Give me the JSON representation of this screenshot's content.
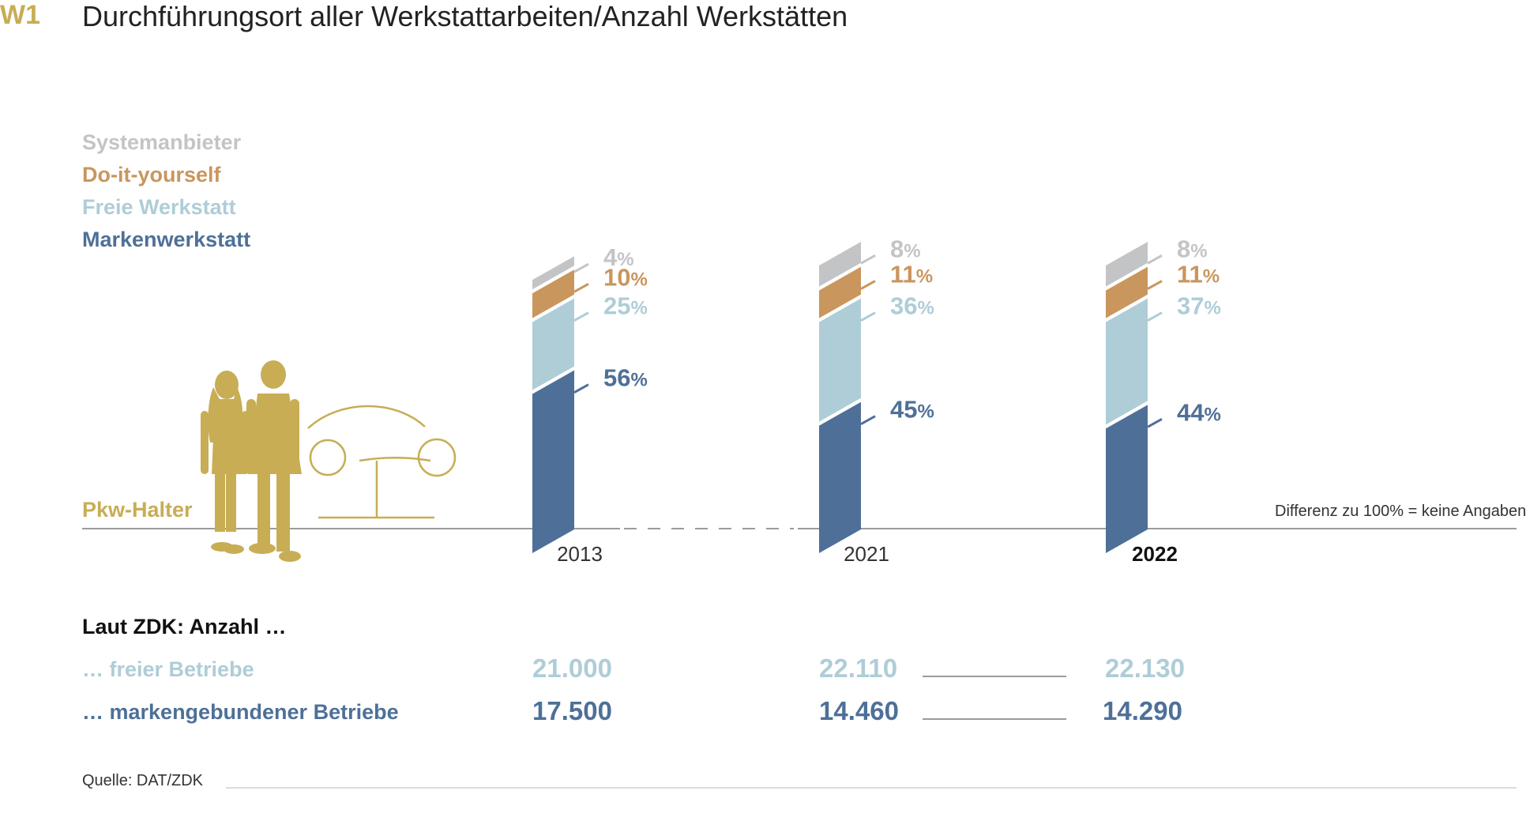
{
  "header": {
    "code": "W1",
    "title": "Durchführungsort aller Werkstattarbeiten/Anzahl Werkstätten"
  },
  "legend": [
    {
      "label": "Systemanbieter",
      "color": "#c3c4c6"
    },
    {
      "label": "Do-it-yourself",
      "color": "#c9965d"
    },
    {
      "label": "Freie Werkstatt",
      "color": "#aecdd7"
    },
    {
      "label": "Markenwerkstatt",
      "color": "#4e7098"
    }
  ],
  "owner_label": "Pkw-Halter",
  "owner_icon": "car-owners-illustration",
  "accent_color": "#c8ad55",
  "note": "Differenz zu 100% = keine Angaben",
  "chart_data": {
    "type": "bar",
    "stacked": true,
    "unit": "%",
    "categories": [
      "2013",
      "2021",
      "2022"
    ],
    "highlight_category": "2022",
    "series": [
      {
        "name": "Markenwerkstatt",
        "values": [
          56,
          45,
          44
        ],
        "color": "#4e7098"
      },
      {
        "name": "Freie Werkstatt",
        "values": [
          25,
          36,
          37
        ],
        "color": "#aecdd7"
      },
      {
        "name": "Do-it-yourself",
        "values": [
          10,
          11,
          11
        ],
        "color": "#c9965d"
      },
      {
        "name": "Systemanbieter",
        "values": [
          4,
          8,
          8
        ],
        "color": "#c3c4c6"
      }
    ],
    "ylim": [
      0,
      100
    ]
  },
  "counts": {
    "heading": "Laut ZDK: Anzahl …",
    "rows": [
      {
        "label": "… freier Betriebe",
        "values": [
          "21.000",
          "22.110",
          "22.130"
        ],
        "color": "#aecdd7"
      },
      {
        "label": "… markengebundener Betriebe",
        "values": [
          "17.500",
          "14.460",
          "14.290"
        ],
        "color": "#4e7098"
      }
    ]
  },
  "source": "Quelle: DAT/ZDK"
}
